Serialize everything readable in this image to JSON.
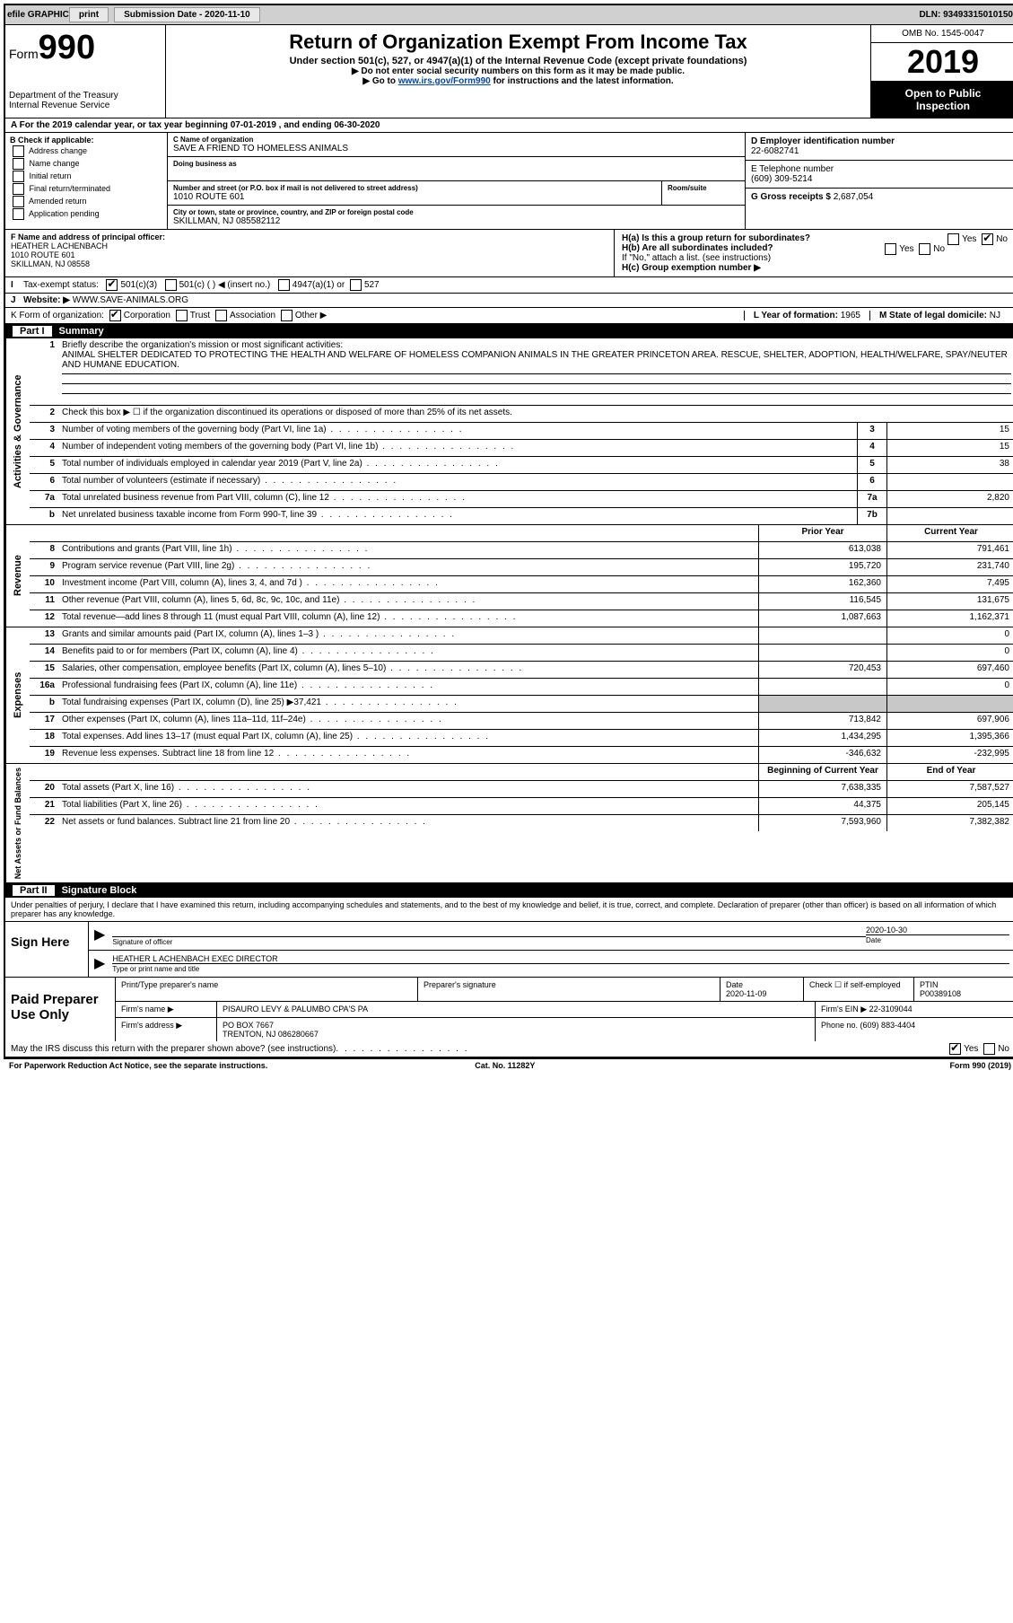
{
  "topbar": {
    "efile": "efile GRAPHIC",
    "print": "print",
    "sub_label": "Submission Date - ",
    "sub_date": "2020-11-10",
    "dln_label": "DLN: ",
    "dln": "93493315010150"
  },
  "header": {
    "form_word": "Form",
    "form_no": "990",
    "dept1": "Department of the Treasury",
    "dept2": "Internal Revenue Service",
    "title": "Return of Organization Exempt From Income Tax",
    "sub1": "Under section 501(c), 527, or 4947(a)(1) of the Internal Revenue Code (except private foundations)",
    "sub2": "▶ Do not enter social security numbers on this form as it may be made public.",
    "sub3_pre": "▶ Go to ",
    "sub3_link": "www.irs.gov/Form990",
    "sub3_post": " for instructions and the latest information.",
    "omb": "OMB No. 1545-0047",
    "year": "2019",
    "open1": "Open to Public",
    "open2": "Inspection"
  },
  "lineA": "For the 2019 calendar year, or tax year beginning 07-01-2019    , and ending 06-30-2020",
  "B": {
    "hdr": "B Check if applicable:",
    "items": [
      "Address change",
      "Name change",
      "Initial return",
      "Final return/terminated",
      "Amended return",
      "Application pending"
    ]
  },
  "C": {
    "name_lbl": "C Name of organization",
    "name": "SAVE A FRIEND TO HOMELESS ANIMALS",
    "dba_lbl": "Doing business as",
    "addr_lbl": "Number and street (or P.O. box if mail is not delivered to street address)",
    "room_lbl": "Room/suite",
    "addr": "1010 ROUTE 601",
    "city_lbl": "City or town, state or province, country, and ZIP or foreign postal code",
    "city": "SKILLMAN, NJ  085582112"
  },
  "D": {
    "lbl": "D Employer identification number",
    "val": "22-6082741"
  },
  "E": {
    "lbl": "E Telephone number",
    "val": "(609) 309-5214"
  },
  "G": {
    "lbl": "G Gross receipts $ ",
    "val": "2,687,054"
  },
  "F": {
    "lbl": "F  Name and address of principal officer:",
    "name": "HEATHER L ACHENBACH",
    "addr1": "1010 ROUTE 601",
    "addr2": "SKILLMAN, NJ  08558"
  },
  "H": {
    "a_lbl": "H(a)  Is this a group return for subordinates?",
    "b_lbl": "H(b)  Are all subordinates included?",
    "b_note": "If \"No,\" attach a list. (see instructions)",
    "c_lbl": "H(c)  Group exemption number ▶",
    "yes": "Yes",
    "no": "No"
  },
  "I": {
    "lbl": "Tax-exempt status:",
    "opts": [
      "501(c)(3)",
      "501(c) (  ) ◀ (insert no.)",
      "4947(a)(1) or",
      "527"
    ]
  },
  "J": {
    "lbl": "Website: ▶",
    "val": "WWW.SAVE-ANIMALS.ORG"
  },
  "K": {
    "lbl": "K Form of organization:",
    "opts": [
      "Corporation",
      "Trust",
      "Association",
      "Other ▶"
    ]
  },
  "L": {
    "lbl": "L Year of formation: ",
    "val": "1965"
  },
  "M": {
    "lbl": "M State of legal domicile: ",
    "val": "NJ"
  },
  "part1": {
    "num": "Part I",
    "title": "Summary"
  },
  "p1": {
    "l1": "Briefly describe the organization's mission or most significant activities:",
    "mission": "ANIMAL SHELTER DEDICATED TO PROTECTING THE HEALTH AND WELFARE OF HOMELESS COMPANION ANIMALS IN THE GREATER PRINCETON AREA. RESCUE, SHELTER, ADOPTION, HEALTH/WELFARE, SPAY/NEUTER AND HUMANE EDUCATION.",
    "l2": "Check this box ▶ ☐  if the organization discontinued its operations or disposed of more than 25% of its net assets.",
    "vtab1": "Activities & Governance",
    "vtab2": "Revenue",
    "vtab3": "Expenses",
    "vtab4": "Net Assets or Fund Balances",
    "prior": "Prior Year",
    "current": "Current Year",
    "boy": "Beginning of Current Year",
    "eoy": "End of Year",
    "rows_gov": [
      {
        "n": "3",
        "d": "Number of voting members of the governing body (Part VI, line 1a)",
        "b": "3",
        "v": "15"
      },
      {
        "n": "4",
        "d": "Number of independent voting members of the governing body (Part VI, line 1b)",
        "b": "4",
        "v": "15"
      },
      {
        "n": "5",
        "d": "Total number of individuals employed in calendar year 2019 (Part V, line 2a)",
        "b": "5",
        "v": "38"
      },
      {
        "n": "6",
        "d": "Total number of volunteers (estimate if necessary)",
        "b": "6",
        "v": ""
      },
      {
        "n": "7a",
        "d": "Total unrelated business revenue from Part VIII, column (C), line 12",
        "b": "7a",
        "v": "2,820"
      },
      {
        "n": "b",
        "d": "Net unrelated business taxable income from Form 990-T, line 39",
        "b": "7b",
        "v": ""
      }
    ],
    "rows_rev": [
      {
        "n": "8",
        "d": "Contributions and grants (Part VIII, line 1h)",
        "p": "613,038",
        "c": "791,461"
      },
      {
        "n": "9",
        "d": "Program service revenue (Part VIII, line 2g)",
        "p": "195,720",
        "c": "231,740"
      },
      {
        "n": "10",
        "d": "Investment income (Part VIII, column (A), lines 3, 4, and 7d )",
        "p": "162,360",
        "c": "7,495"
      },
      {
        "n": "11",
        "d": "Other revenue (Part VIII, column (A), lines 5, 6d, 8c, 9c, 10c, and 11e)",
        "p": "116,545",
        "c": "131,675"
      },
      {
        "n": "12",
        "d": "Total revenue—add lines 8 through 11 (must equal Part VIII, column (A), line 12)",
        "p": "1,087,663",
        "c": "1,162,371"
      }
    ],
    "rows_exp": [
      {
        "n": "13",
        "d": "Grants and similar amounts paid (Part IX, column (A), lines 1–3 )",
        "p": "",
        "c": "0"
      },
      {
        "n": "14",
        "d": "Benefits paid to or for members (Part IX, column (A), line 4)",
        "p": "",
        "c": "0"
      },
      {
        "n": "15",
        "d": "Salaries, other compensation, employee benefits (Part IX, column (A), lines 5–10)",
        "p": "720,453",
        "c": "697,460"
      },
      {
        "n": "16a",
        "d": "Professional fundraising fees (Part IX, column (A), line 11e)",
        "p": "",
        "c": "0"
      },
      {
        "n": "b",
        "d": "Total fundraising expenses (Part IX, column (D), line 25) ▶37,421",
        "p": "grey",
        "c": "grey"
      },
      {
        "n": "17",
        "d": "Other expenses (Part IX, column (A), lines 11a–11d, 11f–24e)",
        "p": "713,842",
        "c": "697,906"
      },
      {
        "n": "18",
        "d": "Total expenses. Add lines 13–17 (must equal Part IX, column (A), line 25)",
        "p": "1,434,295",
        "c": "1,395,366"
      },
      {
        "n": "19",
        "d": "Revenue less expenses. Subtract line 18 from line 12",
        "p": "-346,632",
        "c": "-232,995"
      }
    ],
    "rows_na": [
      {
        "n": "20",
        "d": "Total assets (Part X, line 16)",
        "p": "7,638,335",
        "c": "7,587,527"
      },
      {
        "n": "21",
        "d": "Total liabilities (Part X, line 26)",
        "p": "44,375",
        "c": "205,145"
      },
      {
        "n": "22",
        "d": "Net assets or fund balances. Subtract line 21 from line 20",
        "p": "7,593,960",
        "c": "7,382,382"
      }
    ]
  },
  "part2": {
    "num": "Part II",
    "title": "Signature Block"
  },
  "sig": {
    "intro": "Under penalties of perjury, I declare that I have examined this return, including accompanying schedules and statements, and to the best of my knowledge and belief, it is true, correct, and complete. Declaration of preparer (other than officer) is based on all information of which preparer has any knowledge.",
    "here": "Sign Here",
    "officer_lbl": "Signature of officer",
    "date_lbl": "Date",
    "date": "2020-10-30",
    "name": "HEATHER L ACHENBACH  EXEC DIRECTOR",
    "name_lbl": "Type or print name and title"
  },
  "paid": {
    "lbl": "Paid Preparer Use Only",
    "h1": "Print/Type preparer's name",
    "h2": "Preparer's signature",
    "h3": "Date",
    "h3v": "2020-11-09",
    "h4": "Check ☐ if self-employed",
    "h5": "PTIN",
    "h5v": "P00389108",
    "firm_lbl": "Firm's name    ▶",
    "firm": "PISAURO LEVY & PALUMBO CPA'S PA",
    "ein_lbl": "Firm's EIN ▶ ",
    "ein": "22-3109044",
    "addr_lbl": "Firm's address ▶",
    "addr1": "PO BOX 7667",
    "addr2": "TRENTON, NJ  086280667",
    "phone_lbl": "Phone no. ",
    "phone": "(609) 883-4404",
    "discuss": "May the IRS discuss this return with the preparer shown above? (see instructions)"
  },
  "foot": {
    "l": "For Paperwork Reduction Act Notice, see the separate instructions.",
    "m": "Cat. No. 11282Y",
    "r": "Form 990 (2019)"
  }
}
